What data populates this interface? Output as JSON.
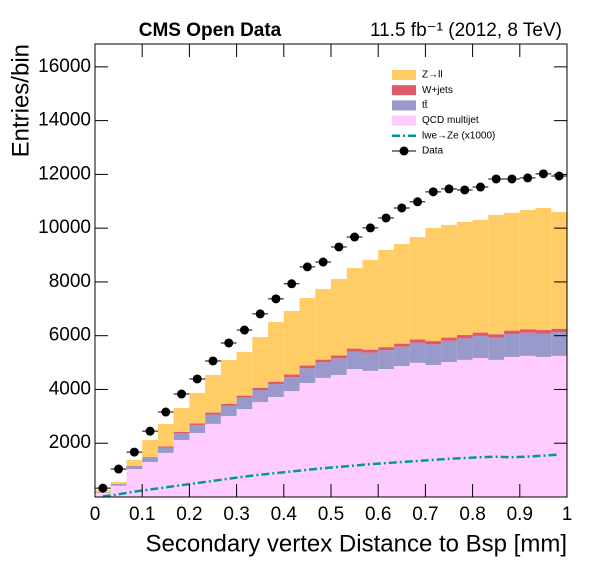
{
  "chart_data": {
    "type": "histogram",
    "title": "CMS Open Data",
    "subtitle": "11.5 fb⁻¹ (2012, 8 TeV)",
    "x_label": "Secondary vertex Distance to Bsp [mm]",
    "y_label": "Entries/bin",
    "bins": [
      0,
      0.0333,
      0.0667,
      0.1,
      0.1333,
      0.1667,
      0.2,
      0.2333,
      0.2667,
      0.3,
      0.3333,
      0.3667,
      0.4,
      0.4333,
      0.4667,
      0.5,
      0.5333,
      0.5667,
      0.6,
      0.6333,
      0.6667,
      0.7,
      0.7333,
      0.7667,
      0.8,
      0.8333,
      0.8667,
      0.9,
      0.9333,
      0.9667,
      1
    ],
    "xlim": [
      0,
      1
    ],
    "xticks": [
      0,
      0.1,
      0.2,
      0.3,
      0.4,
      0.5,
      0.6,
      0.7,
      0.8,
      0.9,
      1
    ],
    "ylim": [
      0,
      16850
    ],
    "yticks": [
      2000,
      4000,
      6000,
      8000,
      10000,
      12000,
      14000,
      16000
    ],
    "legend": "top-right",
    "series": [
      {
        "name": "Z→ll",
        "color": "#ffcc66",
        "style": "stack",
        "values": [
          85,
          70,
          220,
          640,
          840,
          890,
          1130,
          1400,
          1635,
          1630,
          1885,
          2220,
          2365,
          2510,
          2630,
          2845,
          3000,
          3340,
          3615,
          3705,
          3810,
          4210,
          4190,
          4205,
          4195,
          4435,
          4380,
          4440,
          4540,
          4340
        ]
      },
      {
        "name": "W+jets",
        "color": "#de5a6a",
        "style": "stack",
        "values": [
          5,
          10,
          20,
          30,
          40,
          50,
          60,
          70,
          75,
          80,
          85,
          90,
          95,
          100,
          100,
          105,
          110,
          110,
          115,
          115,
          120,
          120,
          120,
          125,
          125,
          125,
          130,
          130,
          130,
          130
        ]
      },
      {
        "name": "tt̄",
        "color": "#9999cc",
        "style": "stack",
        "values": [
          20,
          60,
          100,
          150,
          200,
          250,
          300,
          350,
          380,
          420,
          450,
          480,
          520,
          550,
          580,
          620,
          650,
          680,
          700,
          720,
          750,
          770,
          790,
          800,
          820,
          830,
          850,
          860,
          870,
          880
        ]
      },
      {
        "name": "QCD multijet",
        "color": "#ffccff",
        "style": "stack",
        "values": [
          150,
          420,
          1040,
          1300,
          1640,
          2120,
          2380,
          2720,
          3010,
          3270,
          3530,
          3720,
          3940,
          4240,
          4430,
          4540,
          4760,
          4690,
          4760,
          4870,
          4990,
          4910,
          5020,
          5100,
          5170,
          5100,
          5210,
          5250,
          5210,
          5250
        ]
      },
      {
        "name": "lwe→Ze (x1000)",
        "color": "#009999",
        "style": "line",
        "values": [
          20,
          100,
          200,
          280,
          360,
          440,
          520,
          600,
          680,
          760,
          830,
          890,
          950,
          1010,
          1070,
          1120,
          1170,
          1220,
          1260,
          1300,
          1340,
          1380,
          1420,
          1450,
          1480,
          1500,
          1480,
          1500,
          1540,
          1580
        ]
      },
      {
        "name": "Data",
        "color": "#000000",
        "style": "points",
        "values": [
          330,
          1040,
          1670,
          2450,
          3160,
          3830,
          4390,
          5060,
          5730,
          6210,
          6810,
          7370,
          7930,
          8560,
          8740,
          9300,
          9670,
          10010,
          10380,
          10750,
          10980,
          11350,
          11460,
          11420,
          11530,
          11830,
          11830,
          11870,
          12020,
          11940
        ]
      }
    ]
  }
}
